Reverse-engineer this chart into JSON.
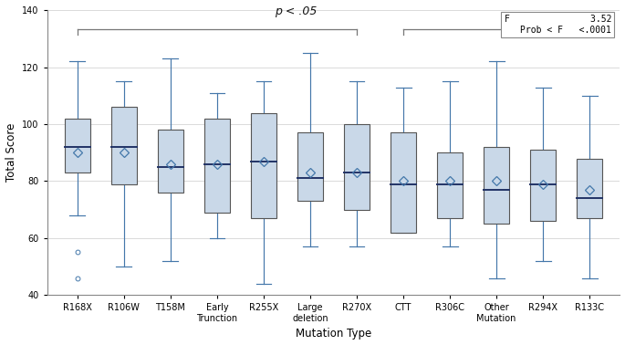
{
  "categories": [
    "R168X",
    "R106W",
    "T158M",
    "Early\nTrunction",
    "R255X",
    "Large\ndeletion",
    "R270X",
    "CTT",
    "R306C",
    "Other\nMutation",
    "R294X",
    "R133C"
  ],
  "box_data": [
    {
      "q1": 83,
      "median": 92,
      "q3": 102,
      "mean": 90,
      "whisker_low": 68,
      "whisker_high": 122,
      "outliers": [
        55,
        46
      ]
    },
    {
      "q1": 79,
      "median": 92,
      "q3": 106,
      "mean": 90,
      "whisker_low": 50,
      "whisker_high": 115,
      "outliers": []
    },
    {
      "q1": 76,
      "median": 85,
      "q3": 98,
      "mean": 86,
      "whisker_low": 52,
      "whisker_high": 123,
      "outliers": []
    },
    {
      "q1": 69,
      "median": 86,
      "q3": 102,
      "mean": 86,
      "whisker_low": 60,
      "whisker_high": 111,
      "outliers": []
    },
    {
      "q1": 67,
      "median": 87,
      "q3": 104,
      "mean": 87,
      "whisker_low": 44,
      "whisker_high": 115,
      "outliers": []
    },
    {
      "q1": 73,
      "median": 81,
      "q3": 97,
      "mean": 83,
      "whisker_low": 57,
      "whisker_high": 125,
      "outliers": []
    },
    {
      "q1": 70,
      "median": 83,
      "q3": 100,
      "mean": 83,
      "whisker_low": 57,
      "whisker_high": 115,
      "outliers": []
    },
    {
      "q1": 62,
      "median": 79,
      "q3": 97,
      "mean": 80,
      "whisker_low": 62,
      "whisker_high": 113,
      "outliers": []
    },
    {
      "q1": 67,
      "median": 79,
      "q3": 90,
      "mean": 80,
      "whisker_low": 57,
      "whisker_high": 115,
      "outliers": []
    },
    {
      "q1": 65,
      "median": 77,
      "q3": 92,
      "mean": 80,
      "whisker_low": 46,
      "whisker_high": 122,
      "outliers": []
    },
    {
      "q1": 66,
      "median": 79,
      "q3": 91,
      "mean": 79,
      "whisker_low": 52,
      "whisker_high": 113,
      "outliers": []
    },
    {
      "q1": 67,
      "median": 74,
      "q3": 88,
      "mean": 77,
      "whisker_low": 46,
      "whisker_high": 110,
      "outliers": []
    }
  ],
  "box_facecolor": "#c9d8e8",
  "box_edgecolor": "#555555",
  "whisker_color": "#4477aa",
  "median_color": "#223366",
  "mean_color": "#4477aa",
  "outlier_color": "#4477aa",
  "bracket_color": "#777777",
  "ylabel": "Total Score",
  "xlabel": "Mutation Type",
  "ylim": [
    40,
    140
  ],
  "yticks": [
    40,
    60,
    80,
    100,
    120,
    140
  ],
  "p_text": "p < .05",
  "stat_line1": "F               3.52",
  "stat_line2": "Prob < F   <.0001",
  "grid_color": "#cccccc",
  "bg_color": "#ffffff"
}
